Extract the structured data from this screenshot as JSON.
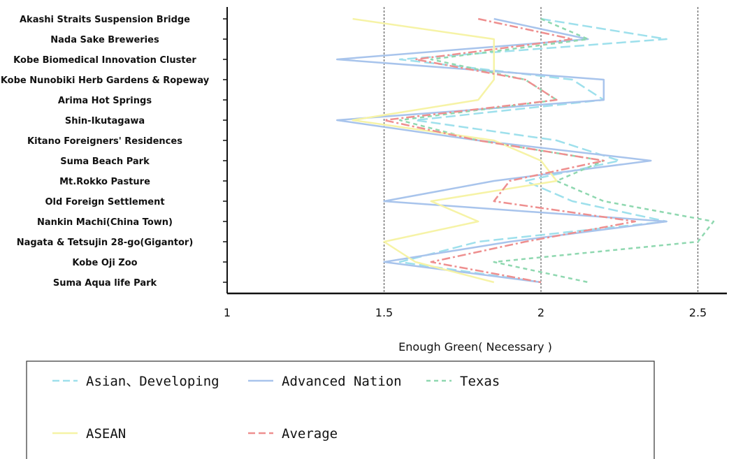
{
  "chart_data": {
    "type": "line",
    "orientation": "horizontal",
    "title": "",
    "xlabel": "Enough Green( Necessary )",
    "ylabel": "",
    "xlim": [
      1,
      2.6
    ],
    "xticks": [
      1,
      1.5,
      2,
      2.5
    ],
    "xtick_labels": [
      "1",
      "1.5",
      "2",
      "2.5"
    ],
    "grid": "vertical dashed at 1.5, 2, 2.5",
    "legend_position": "bottom",
    "categories": [
      "Akashi Straits Suspension Bridge",
      "Nada Sake Breweries",
      "Kobe Biomedical Innovation Cluster",
      "Kobe Nunobiki Herb Gardens & Ropeway",
      "Arima Hot Springs",
      "Shin-Ikutagawa",
      "Kitano Foreigners' Residences",
      "Suma Beach Park",
      "Mt.Rokko Pasture",
      "Old Foreign Settlement",
      "Nankin Machi(China Town)",
      "Nagata & Tetsujin 28-go(Gigantor)",
      "Kobe Oji Zoo",
      "Suma Aqua life Park"
    ],
    "series": [
      {
        "name": "Asian、Developing",
        "color": "#9ee0ec",
        "dash": "long",
        "values": [
          2.0,
          2.4,
          1.55,
          2.1,
          2.2,
          1.6,
          2.05,
          2.25,
          1.95,
          2.1,
          2.4,
          1.8,
          1.55,
          2.0
        ]
      },
      {
        "name": "Advanced Nation",
        "color": "#a8c4ec",
        "dash": "solid",
        "values": [
          1.85,
          2.15,
          1.35,
          2.2,
          2.2,
          1.35,
          1.8,
          2.35,
          1.85,
          1.5,
          2.4,
          1.9,
          1.5,
          2.0
        ]
      },
      {
        "name": "Texas",
        "color": "#8fd8b0",
        "dash": "dashed",
        "values": [
          2.0,
          2.15,
          1.65,
          1.95,
          2.05,
          1.55,
          1.8,
          2.2,
          2.05,
          2.2,
          2.55,
          2.5,
          1.85,
          2.15
        ]
      },
      {
        "name": "ASEAN",
        "color": "#f6f3a6",
        "dash": "solid",
        "values": [
          1.4,
          1.85,
          1.85,
          1.85,
          1.8,
          1.4,
          1.85,
          2.0,
          2.05,
          1.65,
          1.8,
          1.5,
          1.6,
          1.85
        ]
      },
      {
        "name": "Average",
        "color": "#ee8f8f",
        "dash": "mixed",
        "values": [
          1.8,
          2.1,
          1.6,
          1.95,
          2.05,
          1.5,
          1.8,
          2.2,
          1.9,
          1.85,
          2.3,
          1.95,
          1.65,
          2.0
        ]
      }
    ]
  }
}
